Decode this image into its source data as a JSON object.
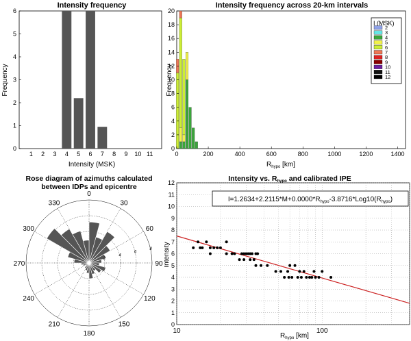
{
  "chart_data": [
    {
      "type": "bar",
      "title": "Intensity frequency",
      "xlabel": "Intensity (MSK)",
      "ylabel": "Frequency",
      "ylim": [
        0,
        6
      ],
      "yticks": [
        "0",
        "1",
        "2",
        "3",
        "4",
        "5",
        "6"
      ],
      "categories": [
        "1",
        "2",
        "3",
        "4",
        "5",
        "6",
        "7",
        "8",
        "9",
        "10",
        "11"
      ],
      "values": [
        0,
        0,
        0,
        6,
        2.2,
        6,
        0.95,
        0,
        0,
        0,
        0
      ],
      "bar_color": "#555555"
    },
    {
      "type": "bar",
      "stacked": true,
      "title": "Intensity frequency across 20-km intervals",
      "xlabel": "R",
      "xlabel_sub": "hypo",
      "xlabel_unit": " [km]",
      "ylabel": "Frequency",
      "xlim": [
        0,
        1450
      ],
      "ylim": [
        0,
        20
      ],
      "xticks": [
        "0",
        "200",
        "400",
        "600",
        "800",
        "1000",
        "1200",
        "1400"
      ],
      "yticks": [
        "0",
        "2",
        "4",
        "6",
        "8",
        "10",
        "12",
        "14",
        "16",
        "18",
        "20"
      ],
      "legend_title": "I (MSK)",
      "legend_position": "top-right",
      "legend": [
        {
          "label": "2",
          "color": "#8fa2e8"
        },
        {
          "label": "3",
          "color": "#66e6e6"
        },
        {
          "label": "4",
          "color": "#3aa63a"
        },
        {
          "label": "5",
          "color": "#f2f24a"
        },
        {
          "label": "6",
          "color": "#ccee33"
        },
        {
          "label": "7",
          "color": "#ee7755"
        },
        {
          "label": "8",
          "color": "#dd2222"
        },
        {
          "label": "9",
          "color": "#880000"
        },
        {
          "label": "10",
          "color": "#6a1fa0"
        },
        {
          "label": "11",
          "color": "#111111"
        },
        {
          "label": "12",
          "color": "#000000"
        }
      ],
      "bars": [
        {
          "x": 5,
          "segments": [
            {
              "i": "6",
              "v": 11
            },
            {
              "i": "7",
              "v": 2
            }
          ]
        },
        {
          "x": 25,
          "segments": [
            {
              "i": "4",
              "v": 1
            },
            {
              "i": "5",
              "v": 2
            },
            {
              "i": "6",
              "v": 16
            },
            {
              "i": "7",
              "v": 1
            }
          ]
        },
        {
          "x": 45,
          "segments": [
            {
              "i": "4",
              "v": 1
            },
            {
              "i": "5",
              "v": 1
            },
            {
              "i": "6",
              "v": 11
            }
          ]
        },
        {
          "x": 65,
          "segments": [
            {
              "i": "4",
              "v": 10
            },
            {
              "i": "5",
              "v": 4
            }
          ]
        },
        {
          "x": 85,
          "segments": [
            {
              "i": "4",
              "v": 6
            }
          ]
        },
        {
          "x": 105,
          "segments": [
            {
              "i": "4",
              "v": 3
            }
          ]
        },
        {
          "x": 125,
          "segments": [
            {
              "i": "4",
              "v": 1
            }
          ]
        }
      ]
    },
    {
      "type": "rose",
      "title": "Rose diagram of azimuths calculated",
      "title2": "between  IDPs and epicentre",
      "angle_labels": [
        "0",
        "30",
        "60",
        "90",
        "120",
        "150",
        "180",
        "210",
        "240",
        "270",
        "300",
        "330"
      ],
      "radial_labels": [
        "2",
        "4",
        "6",
        "8"
      ],
      "rmax": 8,
      "bin_width_deg": 15,
      "sectors": [
        {
          "a": 0,
          "r": 5.2
        },
        {
          "a": 15,
          "r": 3.4
        },
        {
          "a": 30,
          "r": 4.6
        },
        {
          "a": 45,
          "r": 3.1
        },
        {
          "a": 60,
          "r": 2.2
        },
        {
          "a": 75,
          "r": 1.6
        },
        {
          "a": 90,
          "r": 1.3
        },
        {
          "a": 105,
          "r": 2.2
        },
        {
          "a": 120,
          "r": 1.8
        },
        {
          "a": 135,
          "r": 1.2
        },
        {
          "a": 150,
          "r": 1.5
        },
        {
          "a": 165,
          "r": 2.0
        },
        {
          "a": 180,
          "r": 1.3
        },
        {
          "a": 195,
          "r": 1.0
        },
        {
          "a": 210,
          "r": 0.8
        },
        {
          "a": 225,
          "r": 0.5
        },
        {
          "a": 240,
          "r": 0.8
        },
        {
          "a": 255,
          "r": 1.0
        },
        {
          "a": 270,
          "r": 1.9
        },
        {
          "a": 285,
          "r": 2.8
        },
        {
          "a": 300,
          "r": 6.2
        },
        {
          "a": 315,
          "r": 5.0
        },
        {
          "a": 330,
          "r": 4.2
        },
        {
          "a": 345,
          "r": 2.9
        }
      ]
    },
    {
      "type": "scatter",
      "title": "Intensity vs. R",
      "title_sub": "hypo",
      "title_rest": " and calibrated IPE",
      "xlabel": "R",
      "xlabel_sub": "hypo",
      "xlabel_unit": " [km]",
      "ylabel": "Intensity",
      "xscale": "log",
      "xlim": [
        10,
        400
      ],
      "ylim": [
        0,
        12
      ],
      "xticks": [
        "10",
        "100"
      ],
      "yticks": [
        "0",
        "1",
        "2",
        "3",
        "4",
        "5",
        "6",
        "7",
        "8",
        "9",
        "10",
        "11",
        "12"
      ],
      "grid": true,
      "equation_parts": [
        "I=1.2634+2.2115*M+0.0000*R",
        "hypo",
        "-3.8716*Log10(R",
        "hypo",
        ")"
      ],
      "fit_line": {
        "color": "#cc2222",
        "points": [
          [
            10,
            7.5
          ],
          [
            400,
            1.8
          ]
        ]
      },
      "points": [
        [
          13,
          6.5
        ],
        [
          14,
          7
        ],
        [
          14.5,
          6.5
        ],
        [
          15,
          6.5
        ],
        [
          16,
          7
        ],
        [
          17,
          6.5
        ],
        [
          17,
          6
        ],
        [
          18,
          6.5
        ],
        [
          19,
          6.5
        ],
        [
          20,
          6.5
        ],
        [
          22,
          6
        ],
        [
          22,
          7
        ],
        [
          24,
          6
        ],
        [
          25,
          6
        ],
        [
          27,
          5.5
        ],
        [
          28,
          6
        ],
        [
          29,
          6
        ],
        [
          29,
          5.5
        ],
        [
          30,
          6
        ],
        [
          31,
          6
        ],
        [
          32,
          5.5
        ],
        [
          32,
          6
        ],
        [
          33,
          6
        ],
        [
          34,
          5.5
        ],
        [
          35,
          5
        ],
        [
          35,
          6
        ],
        [
          36,
          6
        ],
        [
          38,
          5
        ],
        [
          42,
          5
        ],
        [
          48,
          4.5
        ],
        [
          52,
          4.5
        ],
        [
          55,
          4
        ],
        [
          58,
          4.5
        ],
        [
          59,
          4
        ],
        [
          60,
          5
        ],
        [
          62,
          4
        ],
        [
          65,
          5
        ],
        [
          68,
          4
        ],
        [
          70,
          4.5
        ],
        [
          72,
          4
        ],
        [
          75,
          4.5
        ],
        [
          78,
          4
        ],
        [
          82,
          4
        ],
        [
          85,
          4
        ],
        [
          88,
          4.5
        ],
        [
          90,
          4
        ],
        [
          95,
          4
        ],
        [
          100,
          4.5
        ],
        [
          115,
          4
        ]
      ]
    }
  ]
}
